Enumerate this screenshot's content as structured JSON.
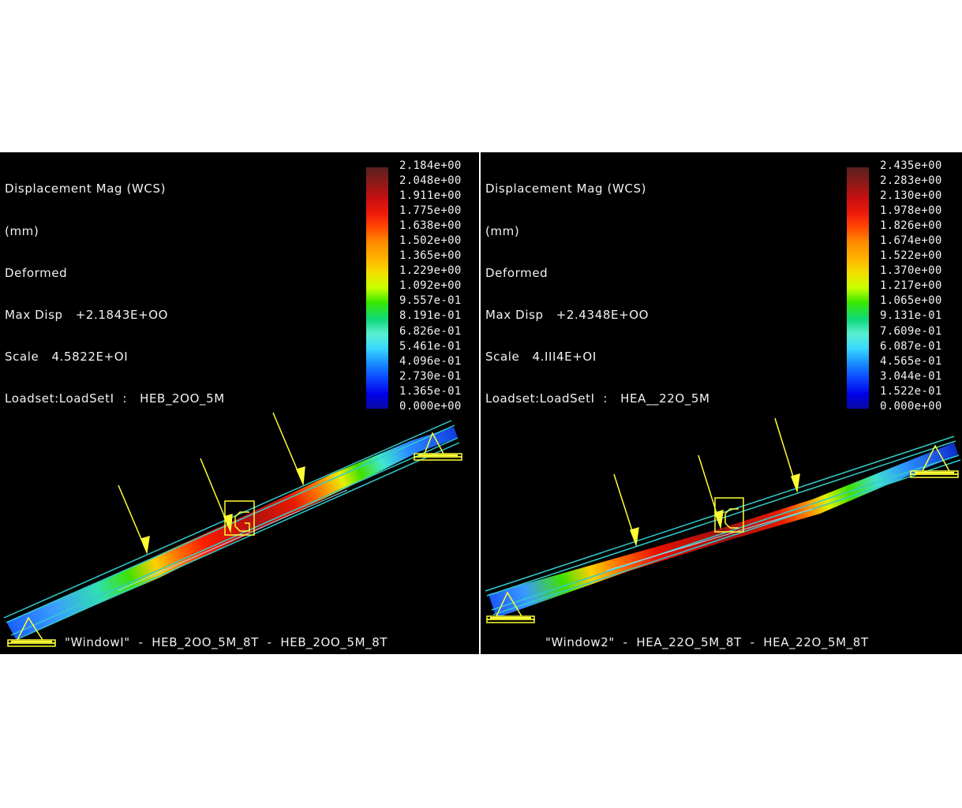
{
  "windows": [
    {
      "info": {
        "title": "Displacement Mag (WCS)",
        "unit": "(mm)",
        "state": "Deformed",
        "max_disp": "Max Disp   +2.1843E+OO",
        "scale": "Scale   4.5822E+OI",
        "loadset": "Loadset:LoadSetI  :   HEB_2OO_5M"
      },
      "legend_values": [
        "2.184e+00",
        "2.048e+00",
        "1.911e+00",
        "1.775e+00",
        "1.638e+00",
        "1.502e+00",
        "1.365e+00",
        "1.229e+00",
        "1.092e+00",
        "9.557e-01",
        "8.191e-01",
        "6.826e-01",
        "5.461e-01",
        "4.096e-01",
        "2.730e-01",
        "1.365e-01",
        "0.000e+00"
      ],
      "footer": "\"WindowI\"  -  HEB_2OO_5M_8T  -  HEB_2OO_5M_8T"
    },
    {
      "info": {
        "title": "Displacement Mag (WCS)",
        "unit": "(mm)",
        "state": "Deformed",
        "max_disp": "Max Disp   +2.4348E+OO",
        "scale": "Scale   4.III4E+OI",
        "loadset": "Loadset:LoadSetI  :   HEA__22O_5M"
      },
      "legend_values": [
        "2.435e+00",
        "2.283e+00",
        "2.130e+00",
        "1.978e+00",
        "1.826e+00",
        "1.674e+00",
        "1.522e+00",
        "1.370e+00",
        "1.217e+00",
        "1.065e+00",
        "9.131e-01",
        "7.609e-01",
        "6.087e-01",
        "4.565e-01",
        "3.044e-01",
        "1.522e-01",
        "0.000e+00"
      ],
      "footer": "\"Window2\"  -  HEA_22O_5M_8T  -  HEA_22O_5M_8T"
    }
  ],
  "colors": {
    "background": "#000000",
    "text": "#f2f2f2",
    "load_arrow": "#ffff33",
    "beam_outline": "#33cccc",
    "legend_scale": [
      "#5a1f1f",
      "#8b1a1a",
      "#c81010",
      "#ee1a0a",
      "#ff4a00",
      "#ff8a00",
      "#ffb400",
      "#f2e000",
      "#c8ff00",
      "#38e800",
      "#10d87a",
      "#5af0d0",
      "#3ad8ff",
      "#1a90ff",
      "#0a40ff",
      "#0000e8",
      "#0a0aa0"
    ]
  }
}
